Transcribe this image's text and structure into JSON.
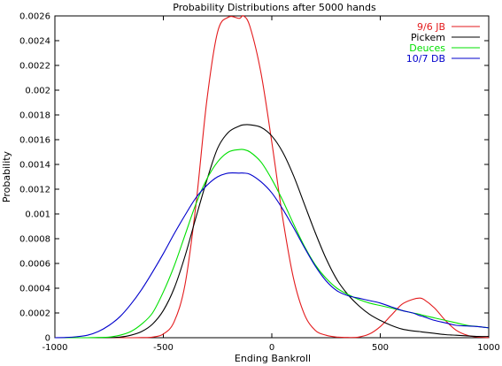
{
  "chart_data": {
    "type": "line",
    "title": "Probability Distributions after 5000 hands",
    "xlabel": "Ending Bankroll",
    "ylabel": "Probability",
    "xlim": [
      -1000,
      1000
    ],
    "ylim": [
      0,
      0.0026
    ],
    "xticks": [
      "-1000",
      "-500",
      "0",
      "500",
      "1000"
    ],
    "yticks": [
      "0",
      "0.0002",
      "0.0004",
      "0.0006",
      "0.0008",
      "0.001",
      "0.0012",
      "0.0014",
      "0.0016",
      "0.0018",
      "0.002",
      "0.0022",
      "0.0024",
      "0.0026"
    ],
    "grid": false,
    "legend_position": "top-right",
    "x": [
      -1000,
      -950,
      -900,
      -850,
      -800,
      -750,
      -700,
      -650,
      -600,
      -550,
      -500,
      -450,
      -400,
      -350,
      -300,
      -250,
      -200,
      -150,
      -130,
      -100,
      -50,
      0,
      50,
      100,
      150,
      200,
      250,
      300,
      350,
      400,
      450,
      500,
      550,
      600,
      650,
      680,
      700,
      750,
      800,
      850,
      900,
      950,
      1000
    ],
    "series": [
      {
        "name": "9/6 JB",
        "color": "#e31a1c",
        "values": [
          0,
          0,
          0,
          0,
          0,
          0,
          0,
          0,
          1e-06,
          5e-06,
          3e-05,
          0.00013,
          0.00043,
          0.00107,
          0.00191,
          0.00247,
          0.00259,
          0.00258,
          0.0026,
          0.00251,
          0.00214,
          0.00158,
          0.00097,
          0.00048,
          0.00019,
          6e-05,
          2e-05,
          5e-06,
          2e-06,
          5e-06,
          3e-05,
          9e-05,
          0.00018,
          0.00027,
          0.00031,
          0.00032,
          0.00031,
          0.00024,
          0.00014,
          6e-05,
          2e-05,
          5e-06,
          1e-06
        ]
      },
      {
        "name": "Pickem",
        "color": "#000000",
        "values": [
          0,
          0,
          0,
          0,
          0,
          1e-06,
          5e-06,
          2e-05,
          5e-05,
          0.00011,
          0.00022,
          0.0004,
          0.00066,
          0.00097,
          0.00127,
          0.00153,
          0.00166,
          0.00171,
          0.00172,
          0.00172,
          0.0017,
          0.00163,
          0.0015,
          0.00131,
          0.00108,
          0.00085,
          0.00064,
          0.00047,
          0.00035,
          0.00026,
          0.00019,
          0.00014,
          0.0001,
          7e-05,
          5.5e-05,
          5e-05,
          4.5e-05,
          3.5e-05,
          2.5e-05,
          2e-05,
          1.5e-05,
          1e-05,
          1e-05
        ]
      },
      {
        "name": "Deuces",
        "color": "#00e000",
        "values": [
          0,
          0,
          0,
          0,
          2e-06,
          5e-06,
          2e-05,
          5e-05,
          0.00011,
          0.0002,
          0.00037,
          0.00058,
          0.00083,
          0.00108,
          0.00128,
          0.00142,
          0.0015,
          0.00152,
          0.00152,
          0.0015,
          0.00142,
          0.00128,
          0.00111,
          0.00092,
          0.00074,
          0.00059,
          0.00048,
          0.0004,
          0.00035,
          0.00031,
          0.00028,
          0.00026,
          0.00024,
          0.00022,
          0.0002,
          0.00019,
          0.00018,
          0.00016,
          0.00014,
          0.00012,
          0.0001,
          9e-05,
          8e-05
        ]
      },
      {
        "name": "10/7 DB",
        "color": "#0000cc",
        "values": [
          0,
          2e-06,
          8e-06,
          2e-05,
          5e-05,
          0.0001,
          0.00017,
          0.00027,
          0.00039,
          0.00053,
          0.00068,
          0.00084,
          0.00099,
          0.00113,
          0.00123,
          0.0013,
          0.00133,
          0.00133,
          0.00133,
          0.00132,
          0.00126,
          0.00117,
          0.00104,
          0.00089,
          0.00073,
          0.00058,
          0.00046,
          0.00038,
          0.00034,
          0.00032,
          0.0003,
          0.00028,
          0.00025,
          0.00022,
          0.0002,
          0.00018,
          0.00017,
          0.00014,
          0.00012,
          0.0001,
          9.5e-05,
          9e-05,
          8e-05
        ]
      }
    ]
  }
}
